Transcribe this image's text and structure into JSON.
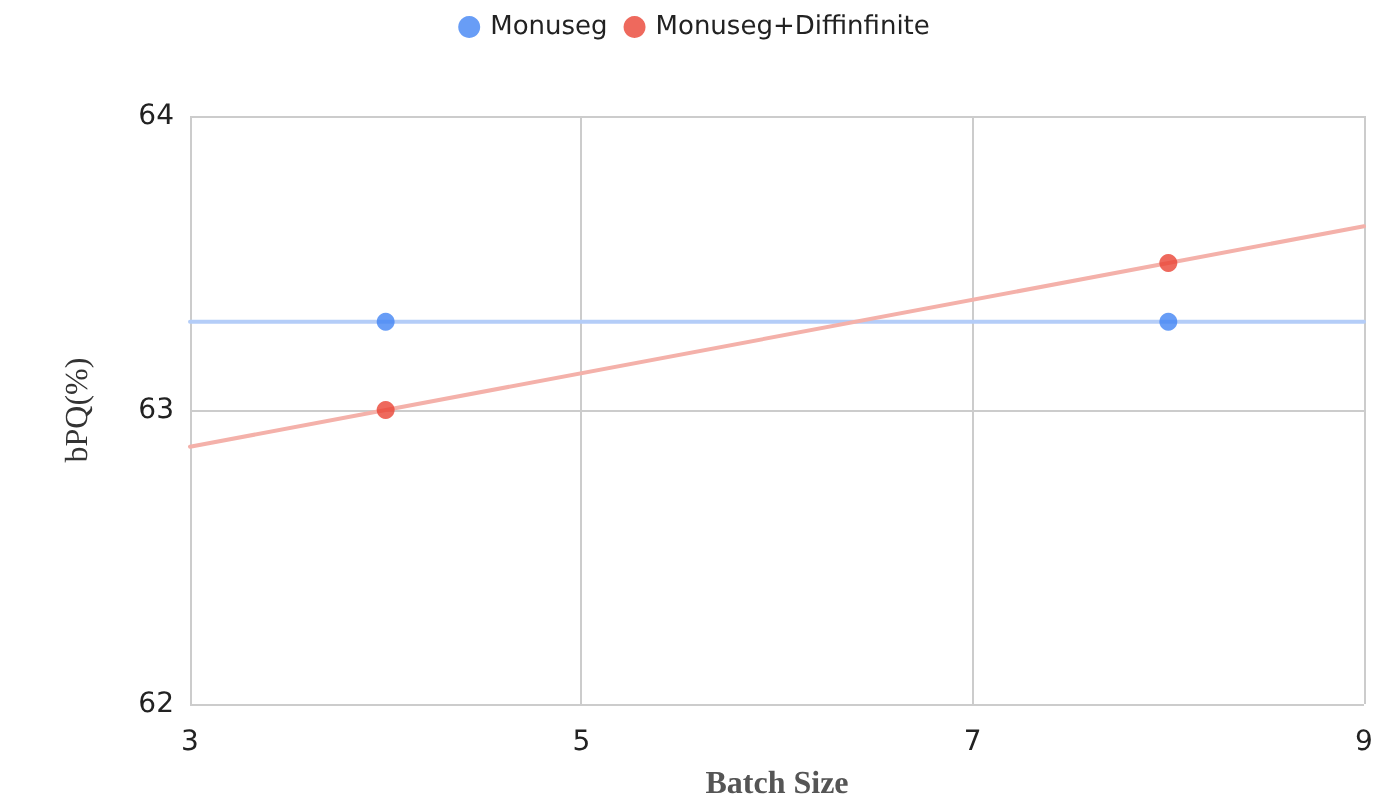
{
  "chart_data": {
    "type": "scatter",
    "xlabel": "Batch Size",
    "ylabel": "bPQ(%)",
    "xlim": [
      3,
      9
    ],
    "xticks": [
      3,
      5,
      7,
      9
    ],
    "ylim": [
      62,
      64
    ],
    "yticks": [
      62,
      63,
      64
    ],
    "grid": true,
    "legend": "top",
    "marker": "circle",
    "series": [
      {
        "name": "Monuseg",
        "color": "#4285f4",
        "x": [
          4,
          8
        ],
        "values": [
          63.3,
          63.3
        ]
      },
      {
        "name": "Monuseg+Diffinfinite",
        "color": "#ea4335",
        "x": [
          4,
          8
        ],
        "values": [
          63.0,
          63.5
        ]
      },
      {
        "type": "line",
        "marker": "none",
        "color": "#b4cdf8",
        "x": [
          3,
          9
        ],
        "values": [
          63.3,
          63.3
        ]
      },
      {
        "type": "line",
        "marker": "none",
        "color": "#f4b1aa",
        "x": [
          3,
          9
        ],
        "values": [
          62.875,
          63.625
        ]
      }
    ]
  }
}
